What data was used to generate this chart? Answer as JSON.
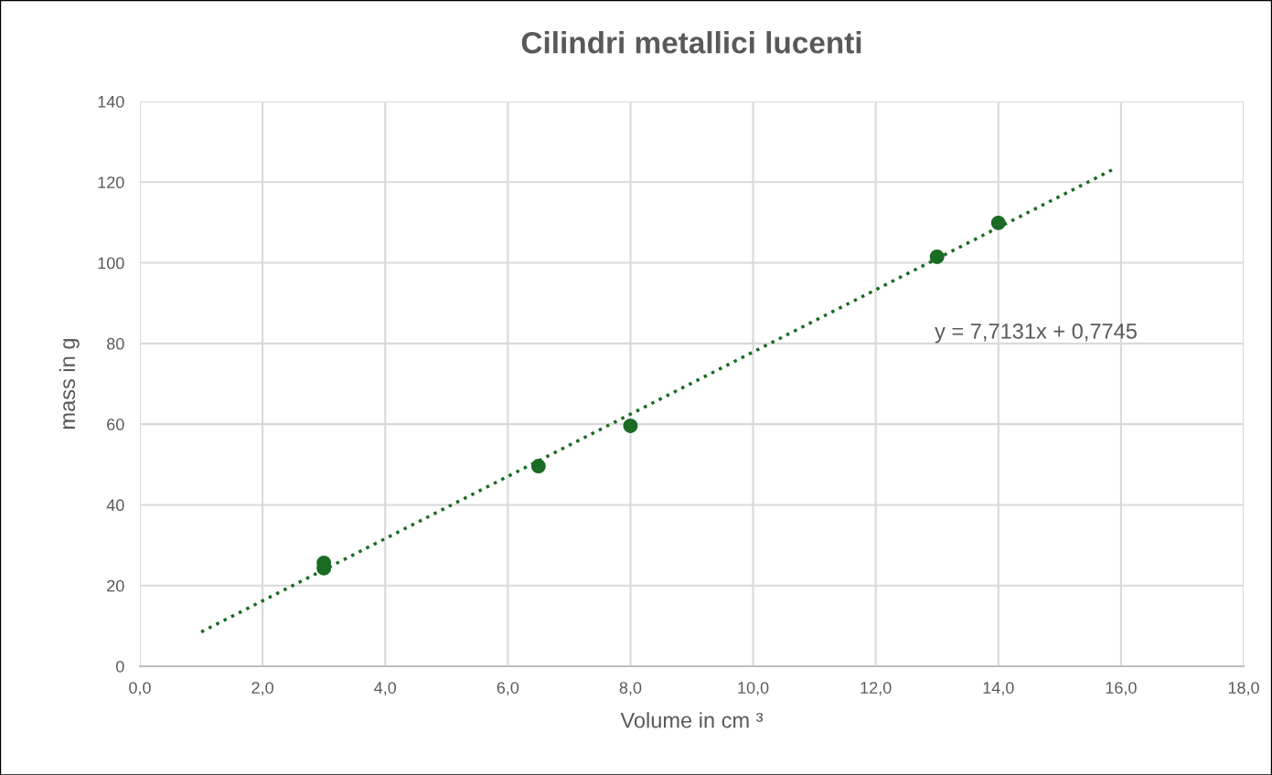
{
  "chart_data": {
    "type": "scatter",
    "title": "Cilindri metallici lucenti",
    "xlabel": "Volume in cm ³",
    "ylabel": "mass in g",
    "marker": "circle",
    "grid": true,
    "series": [
      {
        "color": "#1a6b24",
        "x": [
          3,
          3,
          6.5,
          8,
          13,
          14
        ],
        "values": [
          25.6,
          24.3,
          49.6,
          59.6,
          101.5,
          109.9
        ]
      },
      {
        "type": "line",
        "color": "#1a6b24",
        "line_style": "dotted",
        "marker": "none",
        "x": [
          1,
          15.9
        ],
        "values": [
          8.5,
          123.4
        ]
      }
    ],
    "annotations": [
      "y = 7,7131x + 0,7745"
    ],
    "xlim": [
      0,
      18
    ],
    "ylim": [
      0,
      140
    ],
    "xticks": [
      {
        "value": 0,
        "label": "0,0"
      },
      {
        "value": 2,
        "label": "2,0"
      },
      {
        "value": 4,
        "label": "4,0"
      },
      {
        "value": 6,
        "label": "6,0"
      },
      {
        "value": 8,
        "label": "8,0"
      },
      {
        "value": 10,
        "label": "10,0"
      },
      {
        "value": 12,
        "label": "12,0"
      },
      {
        "value": 14,
        "label": "14,0"
      },
      {
        "value": 16,
        "label": "16,0"
      },
      {
        "value": 18,
        "label": "18,0"
      }
    ],
    "yticks": [
      0,
      20,
      40,
      60,
      80,
      100,
      120,
      140
    ]
  }
}
